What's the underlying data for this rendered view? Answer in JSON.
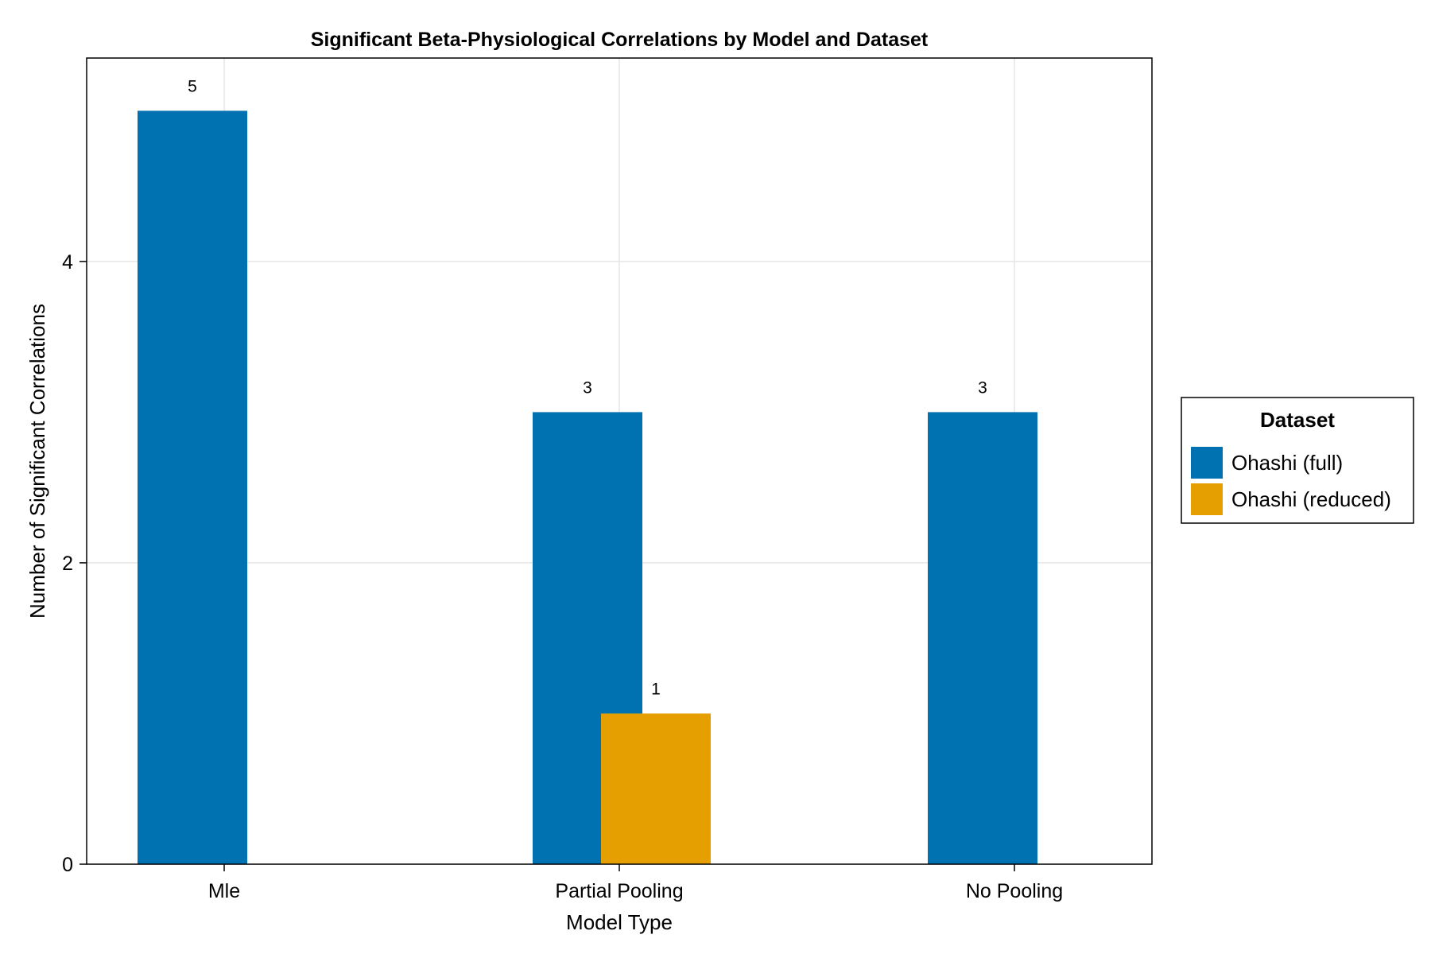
{
  "chart_data": {
    "type": "bar",
    "title": "Significant Beta-Physiological Correlations by Model and Dataset",
    "xlabel": "Model Type",
    "ylabel": "Number of Significant Correlations",
    "categories": [
      "Mle",
      "Partial Pooling",
      "No Pooling"
    ],
    "series": [
      {
        "name": "Ohashi (full)",
        "values": [
          5,
          3,
          3
        ],
        "color": "#0072b2"
      },
      {
        "name": "Ohashi (reduced)",
        "values": [
          null,
          1,
          null
        ],
        "color": "#e69f00"
      }
    ],
    "data_labels": [
      {
        "series": 0,
        "category": 0,
        "text": "5"
      },
      {
        "series": 0,
        "category": 1,
        "text": "3"
      },
      {
        "series": 1,
        "category": 1,
        "text": "1"
      },
      {
        "series": 0,
        "category": 2,
        "text": "3"
      }
    ],
    "ylim": [
      0,
      5.35
    ],
    "yticks": [
      0,
      2,
      4
    ],
    "ytick_labels": [
      "0",
      "2",
      "4"
    ],
    "grid": true,
    "legend": {
      "title": "Dataset",
      "placement": "right"
    }
  }
}
